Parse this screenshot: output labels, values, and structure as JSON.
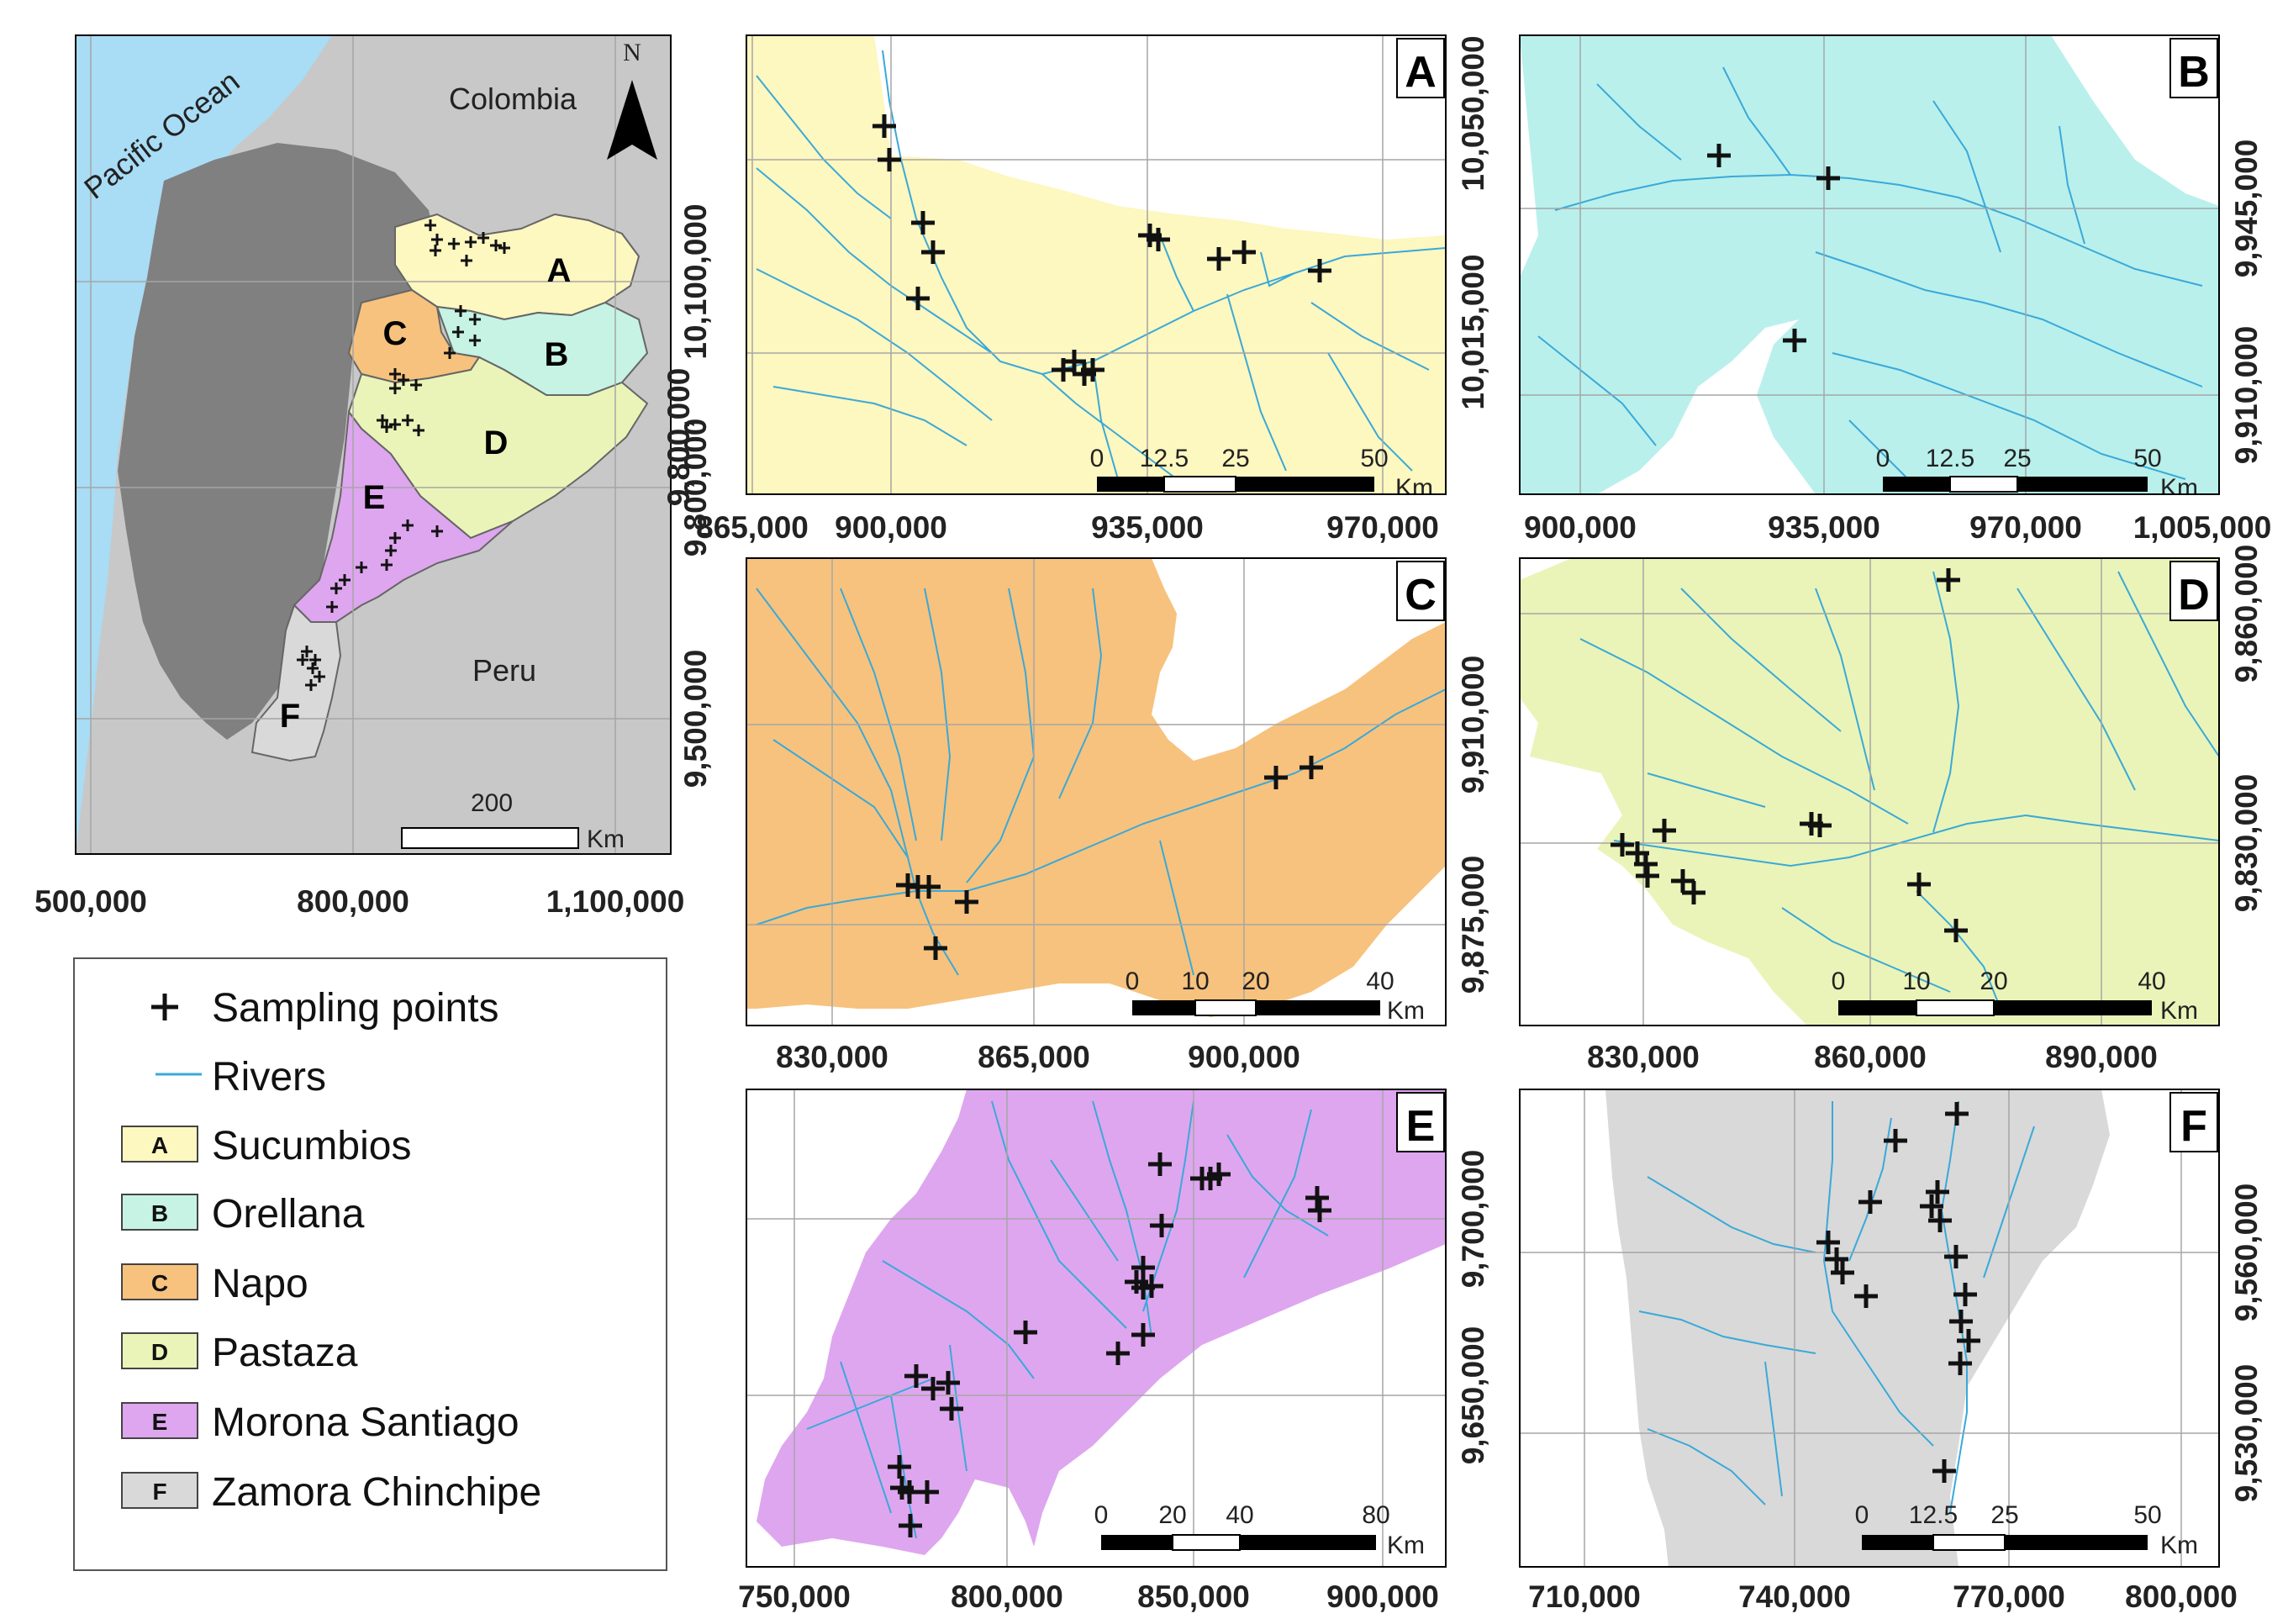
{
  "overview": {
    "labels": {
      "ocean": "Pacific Ocean",
      "colombia": "Colombia",
      "peru": "Peru",
      "north": "N"
    },
    "province_letters": [
      "A",
      "B",
      "C",
      "D",
      "E",
      "F"
    ],
    "scalebar": {
      "value": "200",
      "unit": "Km"
    },
    "x_ticks": [
      "500,000",
      "800,000",
      "1,100,000"
    ],
    "y_ticks": [
      "10,100,000",
      "9,800,000",
      "9,500,000"
    ]
  },
  "legend": {
    "items": [
      {
        "key": "",
        "label": "Sampling points",
        "symbol": "cross"
      },
      {
        "key": "",
        "label": "Rivers",
        "symbol": "line"
      },
      {
        "key": "A",
        "label": "Sucumbios",
        "color": "#fdf7c0"
      },
      {
        "key": "B",
        "label": "Orellana",
        "color": "#c6f3e3"
      },
      {
        "key": "C",
        "label": "Napo",
        "color": "#f7c27d"
      },
      {
        "key": "D",
        "label": "Pastaza",
        "color": "#eaf4b8"
      },
      {
        "key": "E",
        "label": "Morona Santiago",
        "color": "#dea6ef"
      },
      {
        "key": "F",
        "label": "Zamora Chinchipe",
        "color": "#d9d9d9"
      }
    ]
  },
  "panels": [
    {
      "id": "A",
      "fill": "#fdf7c0",
      "x_ticks": [
        "865,000",
        "900,000",
        "935,000",
        "970,000"
      ],
      "y_ticks": [
        "10,050,000",
        "10,015,000",
        "9,800,000"
      ],
      "scale": [
        "0",
        "12.5",
        "25",
        "50"
      ],
      "unit": "Km"
    },
    {
      "id": "B",
      "fill": "#b9f0ec",
      "x_ticks": [
        "900,000",
        "935,000",
        "970,000",
        "1,005,000"
      ],
      "y_ticks": [
        "9,945,000",
        "9,910,000"
      ],
      "scale": [
        "0",
        "12.5",
        "25",
        "50"
      ],
      "unit": "Km"
    },
    {
      "id": "C",
      "fill": "#f7c27d",
      "x_ticks": [
        "830,000",
        "865,000",
        "900,000"
      ],
      "y_ticks": [
        "9,910,000",
        "9,875,000"
      ],
      "scale": [
        "0",
        "10",
        "20",
        "40"
      ],
      "unit": "Km"
    },
    {
      "id": "D",
      "fill": "#eaf4b8",
      "x_ticks": [
        "830,000",
        "860,000",
        "890,000"
      ],
      "y_ticks": [
        "9,860,000",
        "9,830,000"
      ],
      "scale": [
        "0",
        "10",
        "20",
        "40"
      ],
      "unit": "Km"
    },
    {
      "id": "E",
      "fill": "#dea6ef",
      "x_ticks": [
        "750,000",
        "800,000",
        "850,000",
        "900,000"
      ],
      "y_ticks": [
        "9,700,000",
        "9,650,000"
      ],
      "scale": [
        "0",
        "20",
        "40",
        "80"
      ],
      "unit": "Km"
    },
    {
      "id": "F",
      "fill": "#d9d9d9",
      "x_ticks": [
        "710,000",
        "740,000",
        "770,000",
        "800,000"
      ],
      "y_ticks": [
        "9,560,000",
        "9,530,000"
      ],
      "scale": [
        "0",
        "12.5",
        "25",
        "50"
      ],
      "unit": "Km"
    }
  ],
  "colors": {
    "river": "#3aa9d8",
    "ocean": "#a9dcf5",
    "neighbor": "#c8c8c8",
    "ecuador": "#808080",
    "cross": "#111111"
  }
}
